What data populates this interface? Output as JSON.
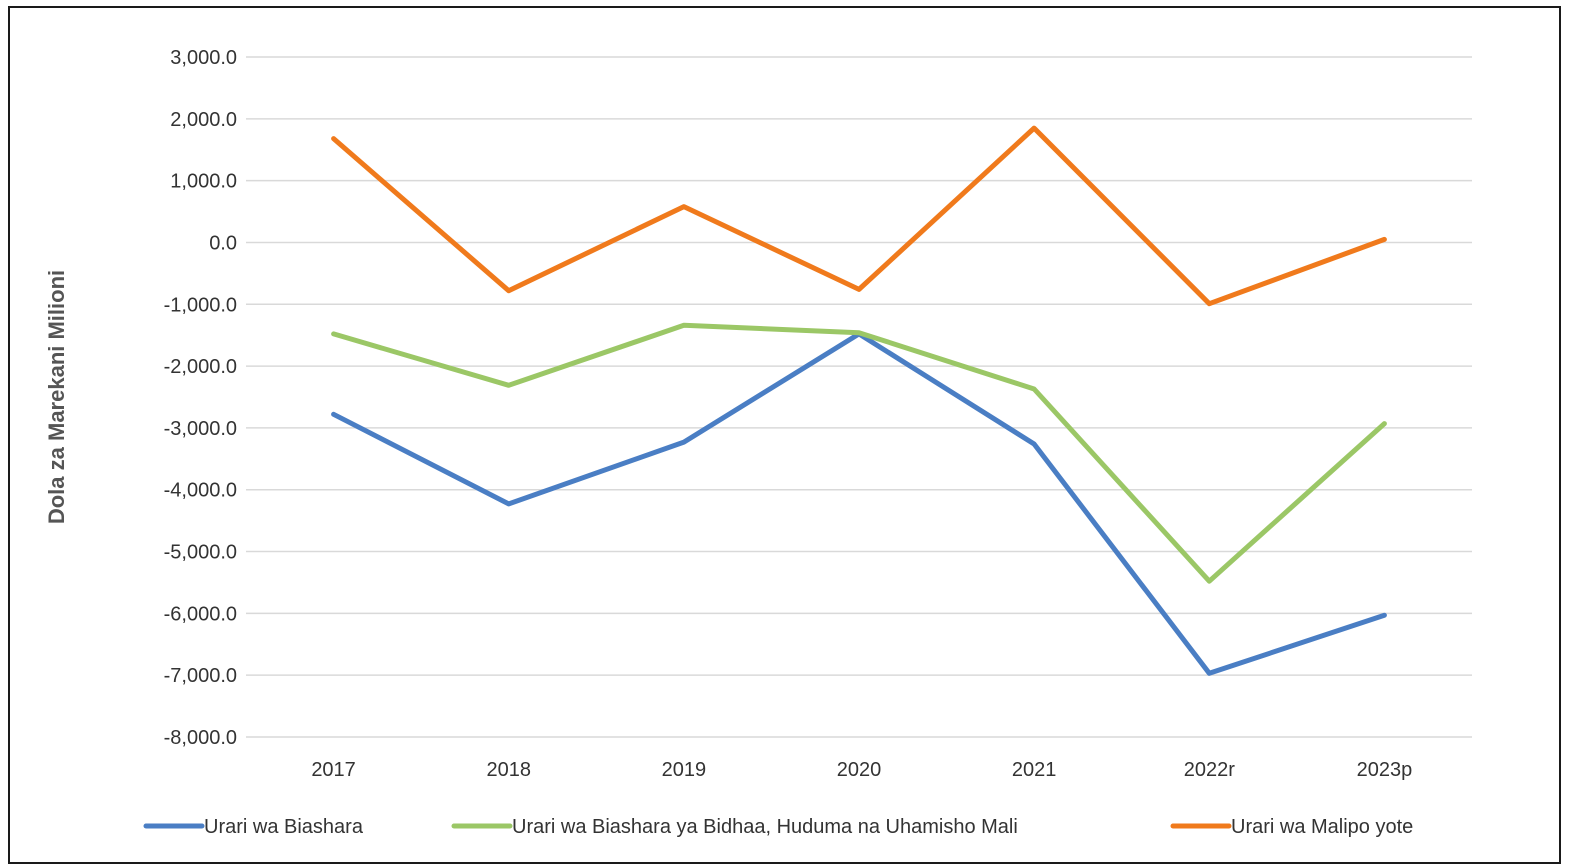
{
  "chart_data": {
    "type": "line",
    "title": "",
    "xlabel": "",
    "ylabel": "Dola za Marekani Milioni",
    "categories": [
      "2017",
      "2018",
      "2019",
      "2020",
      "2021",
      "2022r",
      "2023p"
    ],
    "ylim": [
      -8000,
      3000
    ],
    "yticks": [
      "3,000.0",
      "2,000.0",
      "1,000.0",
      "0.0",
      "-1,000.0",
      "-2,000.0",
      "-3,000.0",
      "-4,000.0",
      "-5,000.0",
      "-6,000.0",
      "-7,000.0",
      "-8,000.0"
    ],
    "grid": true,
    "legend_position": "bottom",
    "series": [
      {
        "name": "Urari wa Biashara",
        "color": "#4a7ec4",
        "values": [
          -2780,
          -4230,
          -3230,
          -1480,
          -3260,
          -6970,
          -6030
        ]
      },
      {
        "name": "Urari wa Biashara ya Bidhaa, Huduma na Uhamisho Mali",
        "color": "#9bc766",
        "values": [
          -1480,
          -2310,
          -1340,
          -1460,
          -2370,
          -5480,
          -2930
        ]
      },
      {
        "name": "Urari wa Malipo yote",
        "color": "#f07a1c",
        "values": [
          1680,
          -780,
          580,
          -760,
          1850,
          -990,
          50
        ]
      }
    ]
  }
}
